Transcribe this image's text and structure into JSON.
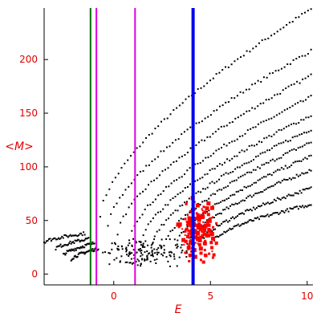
{
  "chart_data": {
    "type": "scatter",
    "xlabel": "E",
    "ylabel": "<M>",
    "xlim": [
      -3.6,
      10.3
    ],
    "ylim": [
      -10,
      248
    ],
    "xticks": [
      0,
      5,
      10
    ],
    "yticks": [
      0,
      50,
      100,
      150,
      200
    ],
    "xtick_labels": [
      "0",
      "5",
      "10"
    ],
    "ytick_labels": [
      "0",
      "50",
      "100",
      "150",
      "200"
    ],
    "grid": false,
    "legend": "none",
    "vertical_lines": [
      {
        "x": -1.2,
        "color": "#007000"
      },
      {
        "x": -0.9,
        "color": "#e000e0"
      },
      {
        "x": 1.1,
        "color": "#e000e0"
      },
      {
        "x": 4.1,
        "color": "#0000ee"
      }
    ],
    "series": [
      {
        "color": "#000000",
        "marker": "dot",
        "bands": [
          {
            "x0": -0.7,
            "x1": 10.2,
            "y0": 55,
            "y1": 247,
            "p": 0.65
          },
          {
            "x0": -0.3,
            "x1": 10.2,
            "y0": 45,
            "y1": 208,
            "p": 0.65
          },
          {
            "x0": 0.2,
            "x1": 10.2,
            "y0": 38,
            "y1": 185,
            "p": 0.65
          },
          {
            "x0": 0.8,
            "x1": 10.2,
            "y0": 33,
            "y1": 165,
            "p": 0.65
          },
          {
            "x0": 1.4,
            "x1": 10.2,
            "y0": 30,
            "y1": 148,
            "p": 0.65
          },
          {
            "x0": 2.0,
            "x1": 10.2,
            "y0": 28,
            "y1": 135,
            "p": 0.65
          },
          {
            "x0": 2.6,
            "x1": 10.2,
            "y0": 27,
            "y1": 123,
            "p": 0.65
          },
          {
            "x0": 3.2,
            "x1": 10.2,
            "y0": 27,
            "y1": 110,
            "p": 0.65
          },
          {
            "x0": 3.8,
            "x1": 10.2,
            "y0": 28,
            "y1": 97,
            "p": 0.65
          },
          {
            "x0": 4.5,
            "x1": 10.2,
            "y0": 30,
            "y1": 80,
            "p": 0.65
          },
          {
            "x0": 5.2,
            "x1": 10.2,
            "y0": 32,
            "y1": 65,
            "p": 0.65
          }
        ],
        "cluster": {
          "x0": -1.5,
          "x1": 4.5,
          "y0": 5,
          "y1": 35,
          "n": 150
        },
        "tails": [
          {
            "x0": -3.6,
            "x1": -1.5,
            "y0": 30,
            "y1": 38,
            "p": 0.7
          },
          {
            "x0": -3.0,
            "x1": -1.3,
            "y0": 24,
            "y1": 33,
            "p": 0.7
          },
          {
            "x0": -2.6,
            "x1": -1.0,
            "y0": 18,
            "y1": 29,
            "p": 0.7
          },
          {
            "x0": -2.2,
            "x1": -0.8,
            "y0": 14,
            "y1": 24,
            "p": 0.7
          }
        ]
      },
      {
        "color": "#ff0000",
        "marker": "square",
        "cluster": {
          "x0": 2.9,
          "x1": 5.7,
          "y0": 10,
          "y1": 72,
          "n": 160
        }
      }
    ]
  }
}
